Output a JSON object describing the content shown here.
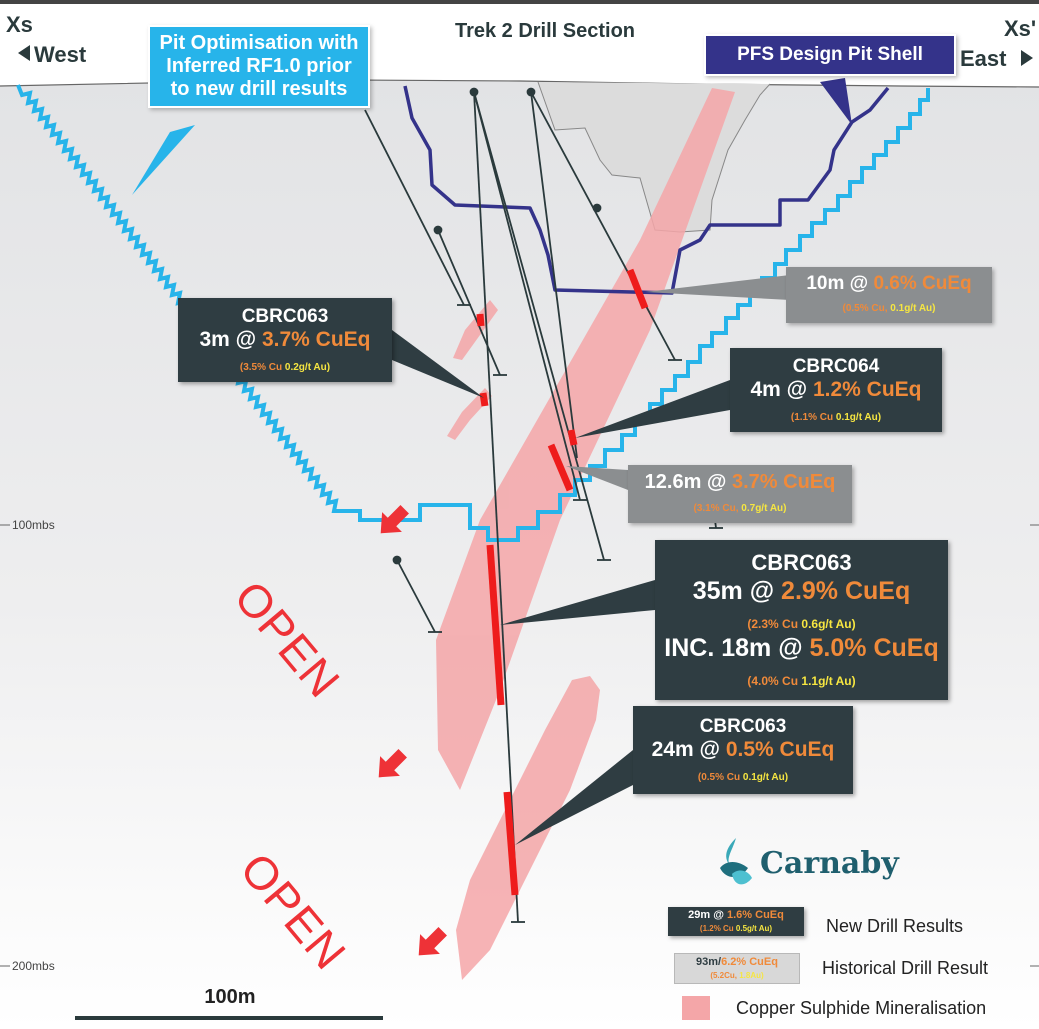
{
  "header": {
    "title": "Trek 2 Drill Section",
    "west_code": "Xs",
    "west_label": "West",
    "east_code": "Xs'",
    "east_label": "East"
  },
  "callouts": {
    "pit_optimisation": "Pit Optimisation with Inferred RF1.0 prior to new drill results",
    "pfs_pit_shell": "PFS Design Pit Shell"
  },
  "results": {
    "r_10m": {
      "interval": "10m @ ",
      "grade": "0.6% CuEq",
      "cu": "(0.5% Cu, ",
      "au": "0.1g/t Au)"
    },
    "r_cbrc063_3m": {
      "hole": "CBRC063",
      "interval": "3m @ ",
      "grade": "3.7% CuEq",
      "cu": "(3.5% Cu  ",
      "au": "0.2g/t Au)"
    },
    "r_cbrc064": {
      "hole": "CBRC064",
      "interval": "4m @ ",
      "grade": "1.2% CuEq",
      "cu": "(1.1% Cu  ",
      "au": "0.1g/t Au)"
    },
    "r_12m": {
      "interval": "12.6m @ ",
      "grade": "3.7% CuEq",
      "cu": "(3.1% Cu, ",
      "au": "0.7g/t Au)"
    },
    "r_cbrc063_35m": {
      "hole": "CBRC063",
      "interval": "35m @ ",
      "grade": "2.9% CuEq",
      "cu": "(2.3% Cu  ",
      "au": "0.6g/t Au)",
      "inc_interval": "INC. 18m @ ",
      "inc_grade": "5.0% CuEq",
      "inc_cu": "(4.0% Cu  ",
      "inc_au": "1.1g/t Au)"
    },
    "r_cbrc063_24m": {
      "hole": "CBRC063",
      "interval": "24m @ ",
      "grade": "0.5% CuEq",
      "cu": "(0.5% Cu  ",
      "au": "0.1g/t Au)"
    }
  },
  "open_labels": {
    "upper": "OPEN",
    "lower": "OPEN"
  },
  "depth_labels": {
    "d100": "100mbs",
    "d200": "200mbs"
  },
  "scale_bar": {
    "label": "100m"
  },
  "logo": {
    "name": "Carnaby"
  },
  "legend": {
    "new_sample_interval": "29m @ ",
    "new_sample_grade": "1.6% CuEq",
    "new_sample_cu": "(1.2% Cu  ",
    "new_sample_au": "0.5g/t Au)",
    "new_label": "New Drill Results",
    "hist_sample_interval": "93m/",
    "hist_sample_grade": "6.2% CuEq",
    "hist_sample_cu": "(5.2Cu, ",
    "hist_sample_au": "1.8Au)",
    "hist_label": "Historical Drill Result",
    "min_label": "Copper Sulphide Mineralisation"
  },
  "colors": {
    "pit_optimisation": "#27b4ea",
    "pfs_shell": "#34338a",
    "mineralisation": "#f4a6a8",
    "intercept": "#ee1c1c",
    "open": "#ee3237",
    "result_box": "#2f3d42",
    "historical_box": "#8b8e90",
    "cu_text": "#f08a3a",
    "au_text": "#f6e641"
  }
}
